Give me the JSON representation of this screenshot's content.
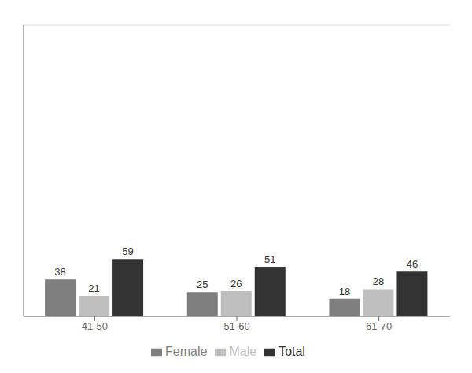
{
  "chart_data": {
    "type": "bar",
    "categories": [
      "41-50",
      "51-60",
      "61-70"
    ],
    "series": [
      {
        "name": "Female",
        "color": "#7f7f7f",
        "values": [
          38,
          25,
          18
        ]
      },
      {
        "name": "Male",
        "color": "#bfbfbf",
        "values": [
          21,
          26,
          28
        ]
      },
      {
        "name": "Total",
        "color": "#333333",
        "values": [
          59,
          51,
          46
        ]
      }
    ],
    "ylim": [
      0,
      300
    ],
    "yticks": [
      0,
      50,
      100,
      150,
      200,
      250,
      300
    ],
    "grid": true,
    "data_labels": true,
    "tick_labels": "x",
    "legend": "bottom"
  }
}
